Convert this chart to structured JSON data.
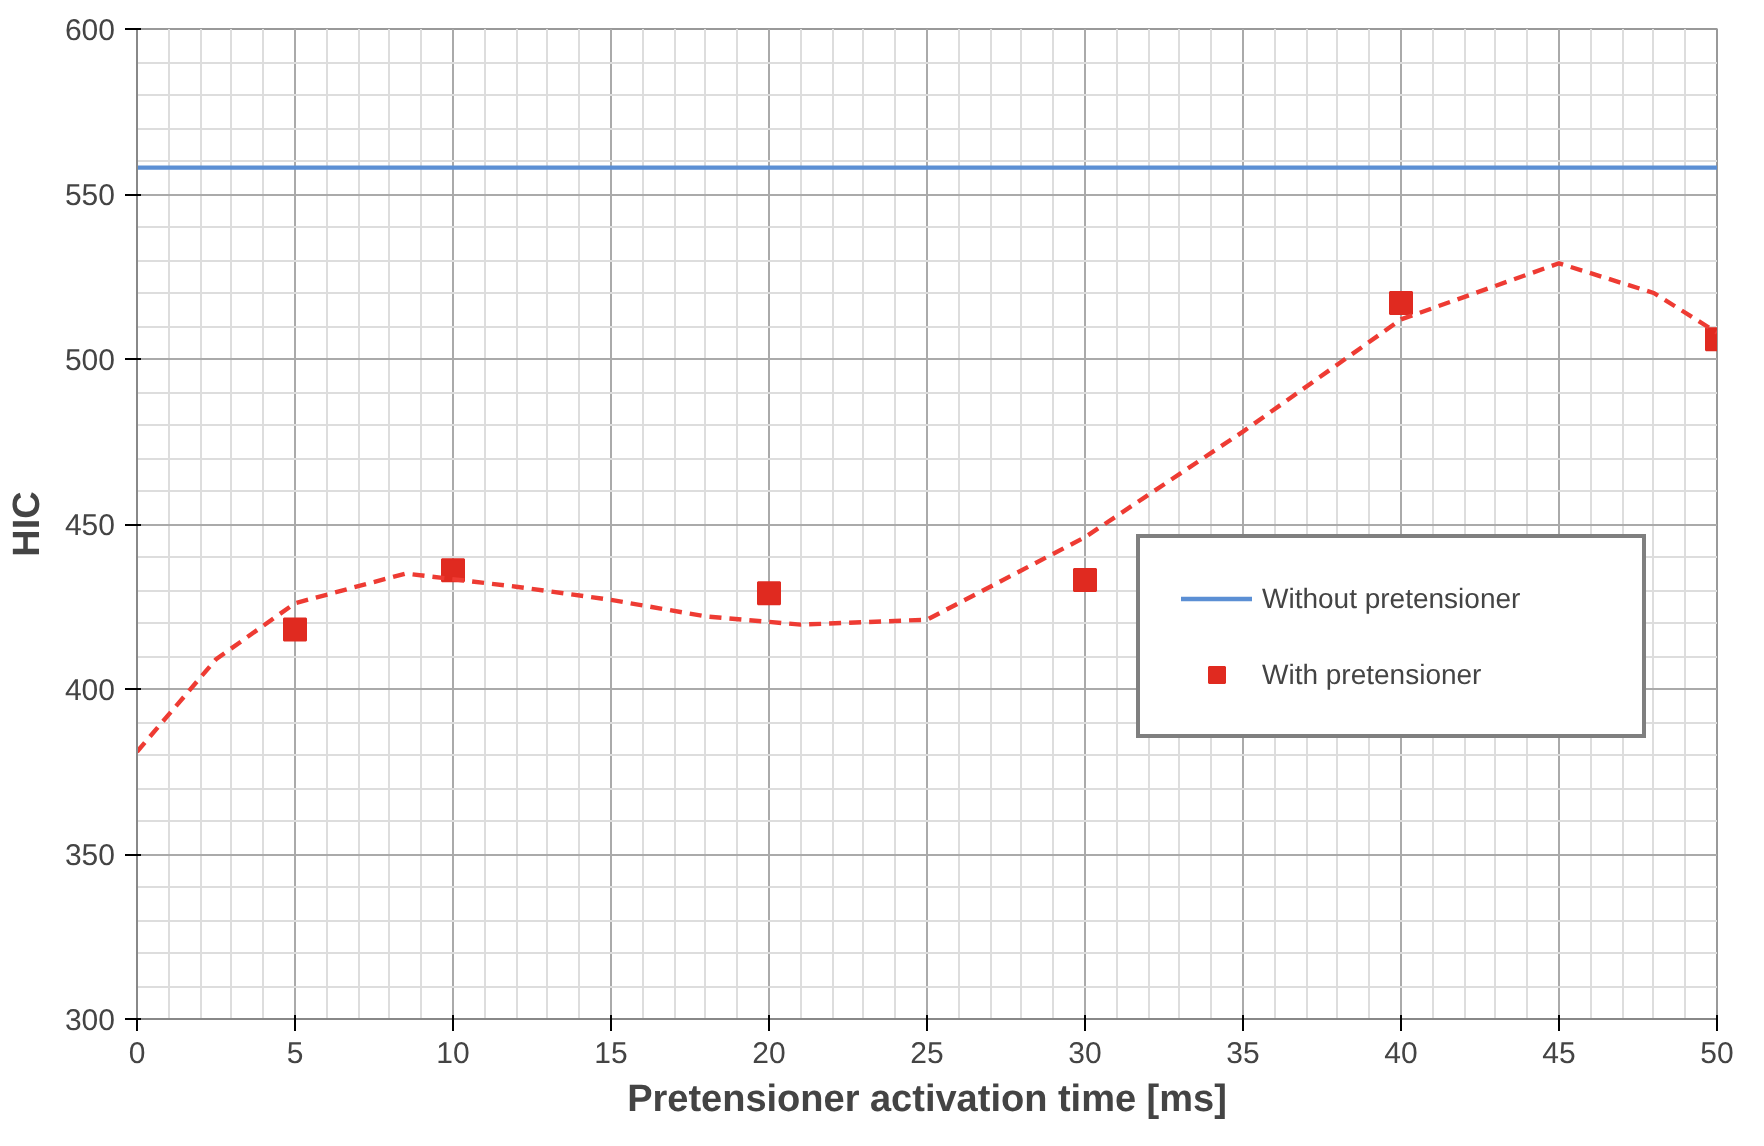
{
  "chart_data": {
    "type": "scatter",
    "xlabel": "Pretensioner activation time [ms]",
    "ylabel": "HIC",
    "xlim": [
      0,
      50
    ],
    "ylim": [
      300,
      600
    ],
    "xticks": [
      0,
      5,
      10,
      15,
      20,
      25,
      30,
      35,
      40,
      45,
      50
    ],
    "yticks": [
      300,
      350,
      400,
      450,
      500,
      550,
      600
    ],
    "grid": true,
    "legend": "right",
    "series": [
      {
        "name": "Without pretensioner",
        "type": "line",
        "color": "#5b8fd4",
        "x": [
          0,
          50
        ],
        "values": [
          558,
          558
        ]
      },
      {
        "name": "With pretensioner",
        "marker": "square",
        "color": "#e02a20",
        "x": [
          5,
          10,
          20,
          30,
          40,
          50
        ],
        "values": [
          418,
          436,
          429,
          433,
          517,
          506
        ]
      },
      {
        "type": "line",
        "line_style": "dashed",
        "color": "#ee3b33",
        "x": [
          0,
          2.5,
          5,
          8.5,
          12,
          15,
          18,
          21,
          25,
          30,
          35,
          40,
          45,
          48,
          50
        ],
        "values": [
          381,
          409,
          426,
          435,
          431,
          427,
          422,
          419.5,
          421,
          446,
          478,
          512,
          529,
          520,
          508
        ]
      }
    ]
  }
}
